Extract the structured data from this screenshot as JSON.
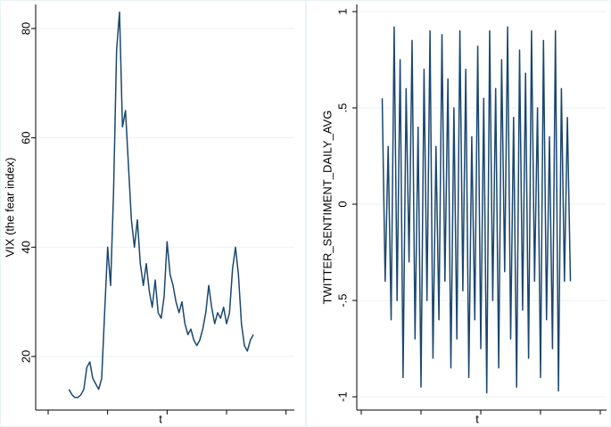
{
  "chart_data": [
    {
      "type": "line",
      "y_label": "VIX (the fear index)",
      "x_label": "t",
      "color": "#1a476f",
      "grid": true,
      "ylim": [
        10.2,
        84.4
      ],
      "yticks": [
        20,
        40,
        60,
        80
      ],
      "xlim": [
        -8.4,
        165.6
      ],
      "xticks": [
        0,
        40,
        80,
        120,
        160
      ],
      "x": [
        14,
        16,
        18,
        20,
        22,
        24,
        26,
        28,
        30,
        32,
        34,
        36,
        38,
        40,
        42,
        44,
        46,
        48,
        50,
        52,
        54,
        56,
        58,
        60,
        62,
        64,
        66,
        68,
        70,
        72,
        74,
        76,
        78,
        80,
        82,
        84,
        86,
        88,
        90,
        92,
        94,
        96,
        98,
        100,
        102,
        104,
        106,
        108,
        110,
        112,
        114,
        116,
        118,
        120,
        122,
        124,
        126,
        128,
        130,
        132,
        134,
        136,
        138
      ],
      "values": [
        14,
        13,
        12.5,
        12.5,
        13,
        14,
        18,
        19,
        16,
        15,
        14,
        16,
        28,
        40,
        33,
        50,
        76,
        83,
        62,
        65,
        55,
        45,
        40,
        45,
        37,
        33,
        37,
        32,
        29,
        34,
        28,
        27,
        31,
        41,
        35,
        33,
        30,
        28,
        30,
        26,
        24,
        25,
        23,
        22,
        23,
        25,
        28,
        33,
        29,
        26,
        28,
        27,
        29,
        26,
        28,
        36,
        40,
        35,
        26,
        22,
        21,
        23,
        24
      ]
    },
    {
      "type": "line",
      "y_label": "TWITTER_SENTIMENT_DAILY_AVG",
      "x_label": "t",
      "color": "#1a476f",
      "grid": true,
      "ylim": [
        -1.069,
        1.037
      ],
      "yticks": [
        {
          "value": -1,
          "label": "-1"
        },
        {
          "value": -0.5,
          "label": "-.5"
        },
        0,
        {
          "value": 0.5,
          "label": ".5"
        },
        1
      ],
      "xlim": [
        -3,
        164.2
      ],
      "xticks": [
        0,
        40,
        80,
        120,
        160
      ],
      "x": [
        14,
        16,
        18,
        20,
        22,
        24,
        26,
        28,
        30,
        32,
        34,
        36,
        38,
        40,
        42,
        44,
        46,
        48,
        50,
        52,
        54,
        56,
        58,
        60,
        62,
        64,
        66,
        68,
        70,
        72,
        74,
        76,
        78,
        80,
        82,
        84,
        86,
        88,
        90,
        92,
        94,
        96,
        98,
        100,
        102,
        104,
        106,
        108,
        110,
        112,
        114,
        116,
        118,
        120,
        122,
        124,
        126,
        128,
        130,
        132,
        134,
        136,
        138,
        140
      ],
      "values": [
        0.55,
        -0.4,
        0.3,
        -0.6,
        0.92,
        -0.5,
        0.75,
        -0.9,
        0.6,
        -0.3,
        0.85,
        -0.7,
        0.4,
        -0.95,
        0.7,
        -0.5,
        0.9,
        -0.8,
        0.3,
        -0.6,
        0.88,
        -0.4,
        0.65,
        -0.85,
        0.5,
        -0.7,
        0.9,
        -0.45,
        0.7,
        -0.9,
        0.35,
        -0.6,
        0.82,
        -0.75,
        0.55,
        -0.98,
        0.9,
        -0.5,
        0.6,
        -0.85,
        0.75,
        -0.35,
        0.92,
        -0.7,
        0.45,
        -0.95,
        0.8,
        -0.55,
        0.68,
        -0.8,
        0.9,
        -0.4,
        0.5,
        -0.9,
        0.85,
        -0.6,
        0.35,
        -0.75,
        0.9,
        -0.97,
        0.6,
        -0.4,
        0.45,
        -0.4
      ]
    }
  ]
}
